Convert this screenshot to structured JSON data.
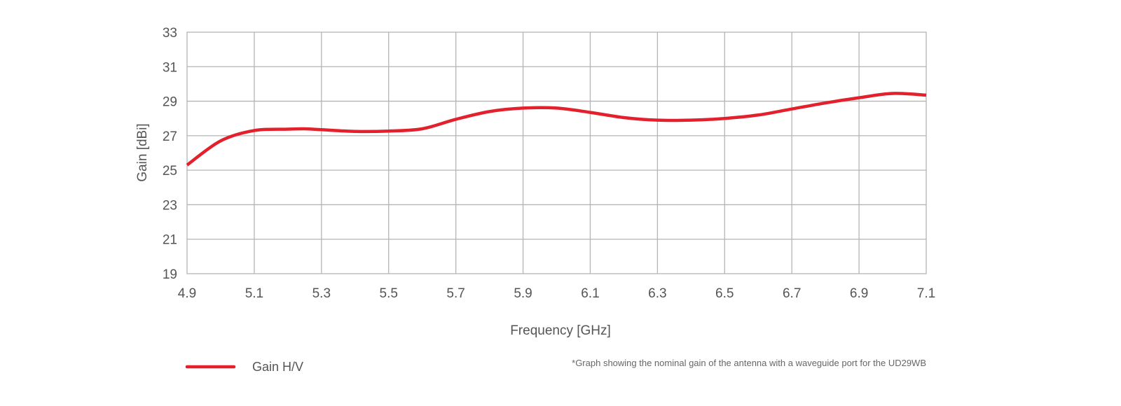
{
  "chart_data": {
    "type": "line",
    "xlabel": "Frequency [GHz]",
    "ylabel": "Gain [dBi]",
    "xlim": [
      4.9,
      7.1
    ],
    "ylim": [
      19,
      33
    ],
    "x_ticks": [
      "4.9",
      "5.1",
      "5.3",
      "5.5",
      "5.7",
      "5.9",
      "6.1",
      "6.3",
      "6.5",
      "6.7",
      "6.9",
      "7.1"
    ],
    "y_ticks": [
      "33",
      "31",
      "29",
      "27",
      "25",
      "23",
      "21",
      "19"
    ],
    "grid": true,
    "legend_position": "bottom-left",
    "series": [
      {
        "name": "Gain H/V",
        "color": "#e3212d",
        "points": [
          [
            4.9,
            25.3
          ],
          [
            5.0,
            26.7
          ],
          [
            5.1,
            27.3
          ],
          [
            5.2,
            27.38
          ],
          [
            5.25,
            27.4
          ],
          [
            5.3,
            27.35
          ],
          [
            5.4,
            27.25
          ],
          [
            5.5,
            27.27
          ],
          [
            5.6,
            27.4
          ],
          [
            5.7,
            27.95
          ],
          [
            5.8,
            28.4
          ],
          [
            5.9,
            28.6
          ],
          [
            6.0,
            28.6
          ],
          [
            6.1,
            28.35
          ],
          [
            6.2,
            28.05
          ],
          [
            6.3,
            27.9
          ],
          [
            6.4,
            27.9
          ],
          [
            6.5,
            28.0
          ],
          [
            6.6,
            28.2
          ],
          [
            6.7,
            28.55
          ],
          [
            6.8,
            28.9
          ],
          [
            6.9,
            29.2
          ],
          [
            7.0,
            29.45
          ],
          [
            7.1,
            29.35
          ]
        ]
      }
    ],
    "annotation": "*Graph showing the nominal gain of the antenna with a waveguide port for the UD29WB"
  }
}
